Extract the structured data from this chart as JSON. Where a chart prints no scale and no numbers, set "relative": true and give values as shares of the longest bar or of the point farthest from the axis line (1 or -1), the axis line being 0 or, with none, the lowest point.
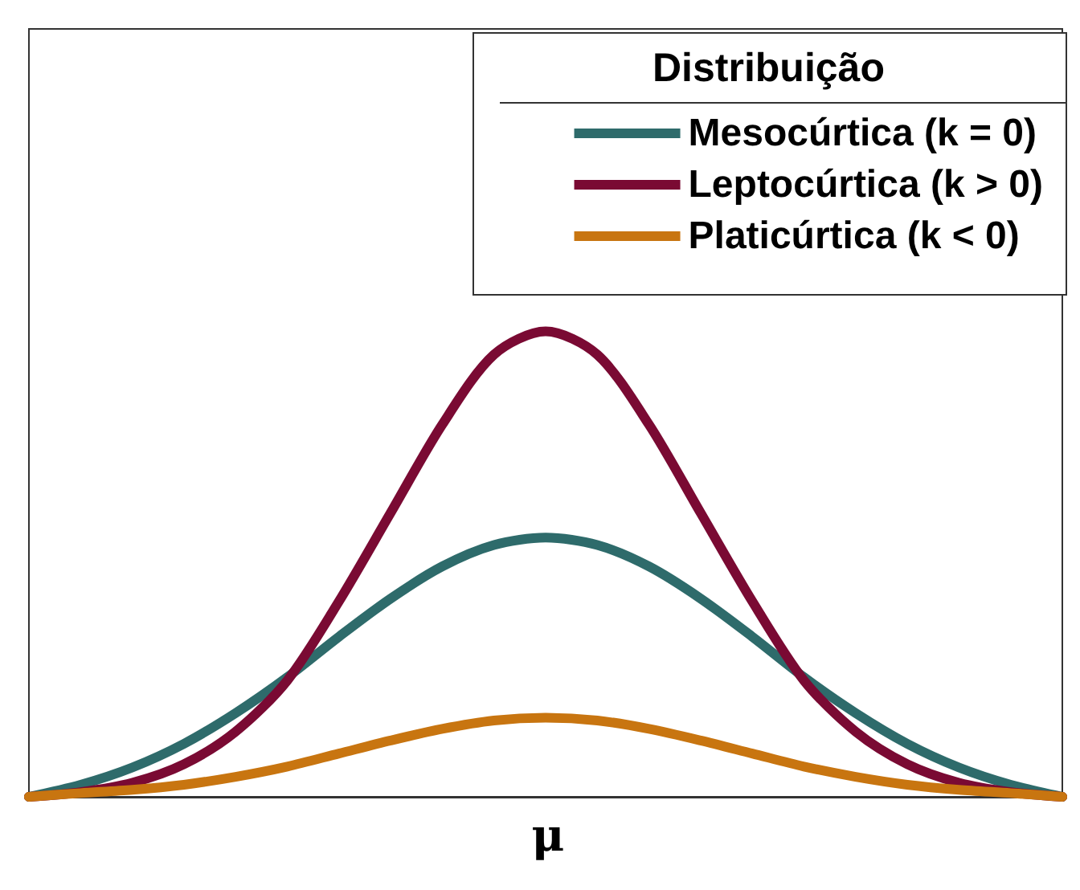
{
  "chart_data": {
    "type": "line",
    "relative": true,
    "legend_title": "Distribuição",
    "legend": "top right",
    "marker": "none",
    "line_style": "solid",
    "grid": false,
    "categories": [
      null,
      null,
      null,
      null,
      null,
      null,
      null,
      null,
      null,
      null,
      null,
      null,
      null,
      null,
      null,
      null,
      null,
      null,
      null,
      null,
      null
    ],
    "annotations": [
      "μ"
    ],
    "series": [
      {
        "name": "Mesocúrtica (k = 0)",
        "color": "#2e6b6b",
        "values": [
          0,
          0.026,
          0.063,
          0.114,
          0.18,
          0.257,
          0.344,
          0.426,
          0.495,
          0.541,
          0.557,
          0.541,
          0.495,
          0.426,
          0.344,
          0.257,
          0.18,
          0.114,
          0.063,
          0.026,
          0
        ]
      },
      {
        "name": "Leptocúrtica (k > 0)",
        "color": "#7a0a33",
        "values": [
          0,
          0.01,
          0.03,
          0.07,
          0.14,
          0.25,
          0.42,
          0.61,
          0.8,
          0.95,
          1,
          0.95,
          0.8,
          0.61,
          0.42,
          0.25,
          0.14,
          0.07,
          0.03,
          0.01,
          0
        ]
      },
      {
        "name": "Platicúrtica (k < 0)",
        "color": "#c87510",
        "values": [
          0,
          0.008,
          0.015,
          0.026,
          0.043,
          0.065,
          0.093,
          0.121,
          0.146,
          0.164,
          0.17,
          0.164,
          0.146,
          0.121,
          0.093,
          0.065,
          0.043,
          0.026,
          0.015,
          0.008,
          0
        ]
      }
    ]
  }
}
